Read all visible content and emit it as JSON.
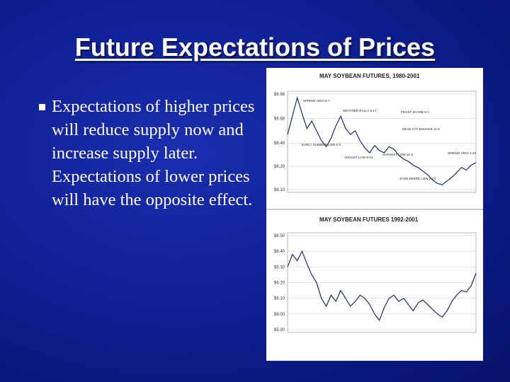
{
  "title": "Future Expectations of Prices",
  "bullet": "Expectations of higher prices will reduce supply now and increase supply later.  Expectations of lower prices will have the opposite effect.",
  "chart_data": [
    {
      "type": "line",
      "title": "MAY SOYBEAN FUTURES, 1980-2001",
      "color": "#2a3a6a",
      "ylim": [
        6.1,
        6.88
      ],
      "yticks": [
        {
          "value": 6.88,
          "label": "$6.88"
        },
        {
          "value": 6.68,
          "label": "$6.68"
        },
        {
          "value": 6.48,
          "label": "$6.48"
        },
        {
          "value": 6.29,
          "label": "$6.29"
        },
        {
          "value": 6.1,
          "label": "$6.10"
        }
      ],
      "values": [
        6.55,
        6.7,
        6.85,
        6.72,
        6.6,
        6.66,
        6.58,
        6.5,
        6.45,
        6.52,
        6.62,
        6.7,
        6.6,
        6.55,
        6.58,
        6.5,
        6.44,
        6.4,
        6.46,
        6.42,
        6.4,
        6.45,
        6.43,
        6.38,
        6.35,
        6.33,
        6.3,
        6.28,
        6.25,
        6.22,
        6.18,
        6.15,
        6.14,
        6.17,
        6.2,
        6.24,
        6.28,
        6.26,
        6.3,
        6.32
      ],
      "annotations": [
        "SPRING HIGH 5-7",
        "WEATHER RALLY 6-17",
        "FROST SCARE 9-7",
        "DEAD CAT BOUNCE 11-6",
        "EARLY SUMMER LOW 6-3",
        "HARVEST LOW 10-3",
        "AUGUST LOW 8-14",
        "SPRING HIGH 4-20",
        "JOHN DEERE LOW 2-13"
      ]
    },
    {
      "type": "line",
      "title": "MAY SOYBEAN FUTURES 1992-2001",
      "color": "#2a3a6a",
      "ylim": [
        5.9,
        6.5
      ],
      "yticks": [
        {
          "value": 6.5,
          "label": "$6.50"
        },
        {
          "value": 6.4,
          "label": "$6.40"
        },
        {
          "value": 6.3,
          "label": "$6.30"
        },
        {
          "value": 6.2,
          "label": "$6.20"
        },
        {
          "value": 6.1,
          "label": "$6.10"
        },
        {
          "value": 6.0,
          "label": "$6.00"
        },
        {
          "value": 5.9,
          "label": "$5.90"
        }
      ],
      "values": [
        6.3,
        6.38,
        6.34,
        6.4,
        6.32,
        6.25,
        6.2,
        6.1,
        6.05,
        6.12,
        6.08,
        6.15,
        6.1,
        6.05,
        6.08,
        6.12,
        6.1,
        6.06,
        6.0,
        5.96,
        6.04,
        6.1,
        6.12,
        6.08,
        6.1,
        6.06,
        6.02,
        6.07,
        6.09,
        6.06,
        6.03,
        6.0,
        5.98,
        6.02,
        6.08,
        6.12,
        6.15,
        6.14,
        6.18,
        6.26
      ]
    }
  ]
}
